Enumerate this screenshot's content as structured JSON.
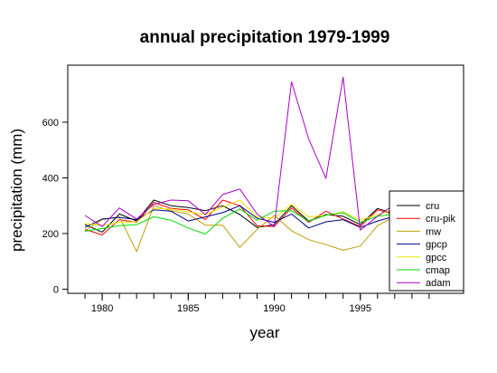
{
  "chart_data": {
    "type": "line",
    "title": "annual precipitation 1979-1999",
    "xlabel": "year",
    "ylabel": "precipitation (mm)",
    "xlim": [
      1978,
      2001
    ],
    "ylim": [
      -15,
      805
    ],
    "xticks": [
      "1980",
      "1985",
      "1990",
      "1995"
    ],
    "yticks": [
      "0",
      "200",
      "400",
      "600"
    ],
    "legend_position": "bottom-right",
    "series": [
      {
        "name": "cru",
        "color": "#000000",
        "x": [
          1979,
          1980,
          1981,
          1982,
          1983,
          1984,
          1985,
          1986,
          1987,
          1988,
          1989,
          1990,
          1991,
          1992,
          1993,
          1994,
          1995,
          1996,
          1997,
          1998,
          1999
        ],
        "y": [
          232,
          205,
          270,
          245,
          320,
          300,
          293,
          282,
          300,
          268,
          222,
          232,
          300,
          245,
          268,
          262,
          232,
          290,
          272,
          282,
          298
        ]
      },
      {
        "name": "cru-pik",
        "color": "#ff0000",
        "x": [
          1979,
          1980,
          1981,
          1982,
          1983,
          1984,
          1985,
          1986,
          1987,
          1988,
          1989,
          1990,
          1991,
          1992,
          1993,
          1994,
          1995,
          1996,
          1997,
          1998,
          1999
        ],
        "y": [
          215,
          195,
          250,
          240,
          312,
          290,
          285,
          250,
          320,
          300,
          228,
          225,
          292,
          240,
          280,
          252,
          225,
          285,
          268,
          278,
          290
        ]
      },
      {
        "name": "mw",
        "color": "#bda000",
        "x": [
          1979,
          1980,
          1981,
          1982,
          1983,
          1984,
          1985,
          1986,
          1987,
          1988,
          1989,
          1990,
          1991,
          1992,
          1993,
          1994,
          1995,
          1996,
          1997,
          1998,
          1999
        ],
        "y": [
          210,
          250,
          260,
          135,
          300,
          282,
          270,
          230,
          230,
          150,
          215,
          265,
          210,
          178,
          160,
          140,
          155,
          228,
          262,
          292,
          350
        ]
      },
      {
        "name": "gpcp",
        "color": "#000080",
        "x": [
          1979,
          1980,
          1981,
          1982,
          1983,
          1984,
          1985,
          1986,
          1987,
          1988,
          1989,
          1990,
          1991,
          1992,
          1993,
          1994,
          1995,
          1996,
          1997,
          1998,
          1999
        ],
        "y": [
          222,
          252,
          258,
          250,
          285,
          280,
          245,
          260,
          275,
          300,
          255,
          240,
          270,
          220,
          242,
          250,
          222,
          245,
          262,
          270,
          278
        ]
      },
      {
        "name": "gpcc",
        "color": "#e8e800",
        "x": [
          1979,
          1980,
          1981,
          1982,
          1983,
          1984,
          1985,
          1986,
          1987,
          1988,
          1989,
          1990,
          1991,
          1992,
          1993,
          1994,
          1995,
          1996,
          1997,
          1998,
          1999
        ],
        "y": [
          236,
          228,
          240,
          242,
          290,
          288,
          278,
          268,
          295,
          320,
          260,
          255,
          305,
          260,
          265,
          278,
          248,
          268,
          288,
          292,
          300
        ]
      },
      {
        "name": "cmap",
        "color": "#00dd00",
        "x": [
          1979,
          1980,
          1981,
          1982,
          1983,
          1984,
          1985,
          1986,
          1987,
          1988,
          1989,
          1990,
          1991,
          1992,
          1993,
          1994,
          1995,
          1996,
          1997,
          1998,
          1999
        ],
        "y": [
          208,
          218,
          228,
          232,
          260,
          248,
          220,
          198,
          255,
          288,
          248,
          280,
          282,
          244,
          266,
          275,
          240,
          262,
          270,
          276,
          282
        ]
      },
      {
        "name": "adam",
        "color": "#aa00cc",
        "x": [
          1979,
          1980,
          1981,
          1982,
          1983,
          1984,
          1985,
          1986,
          1987,
          1988,
          1989,
          1990,
          1991,
          1992,
          1993,
          1994,
          1995,
          1996,
          1997,
          1998,
          1999
        ],
        "y": [
          265,
          225,
          292,
          252,
          305,
          320,
          318,
          268,
          340,
          360,
          270,
          225,
          745,
          540,
          398,
          762,
          212,
          262,
          305,
          312,
          320
        ]
      }
    ]
  }
}
